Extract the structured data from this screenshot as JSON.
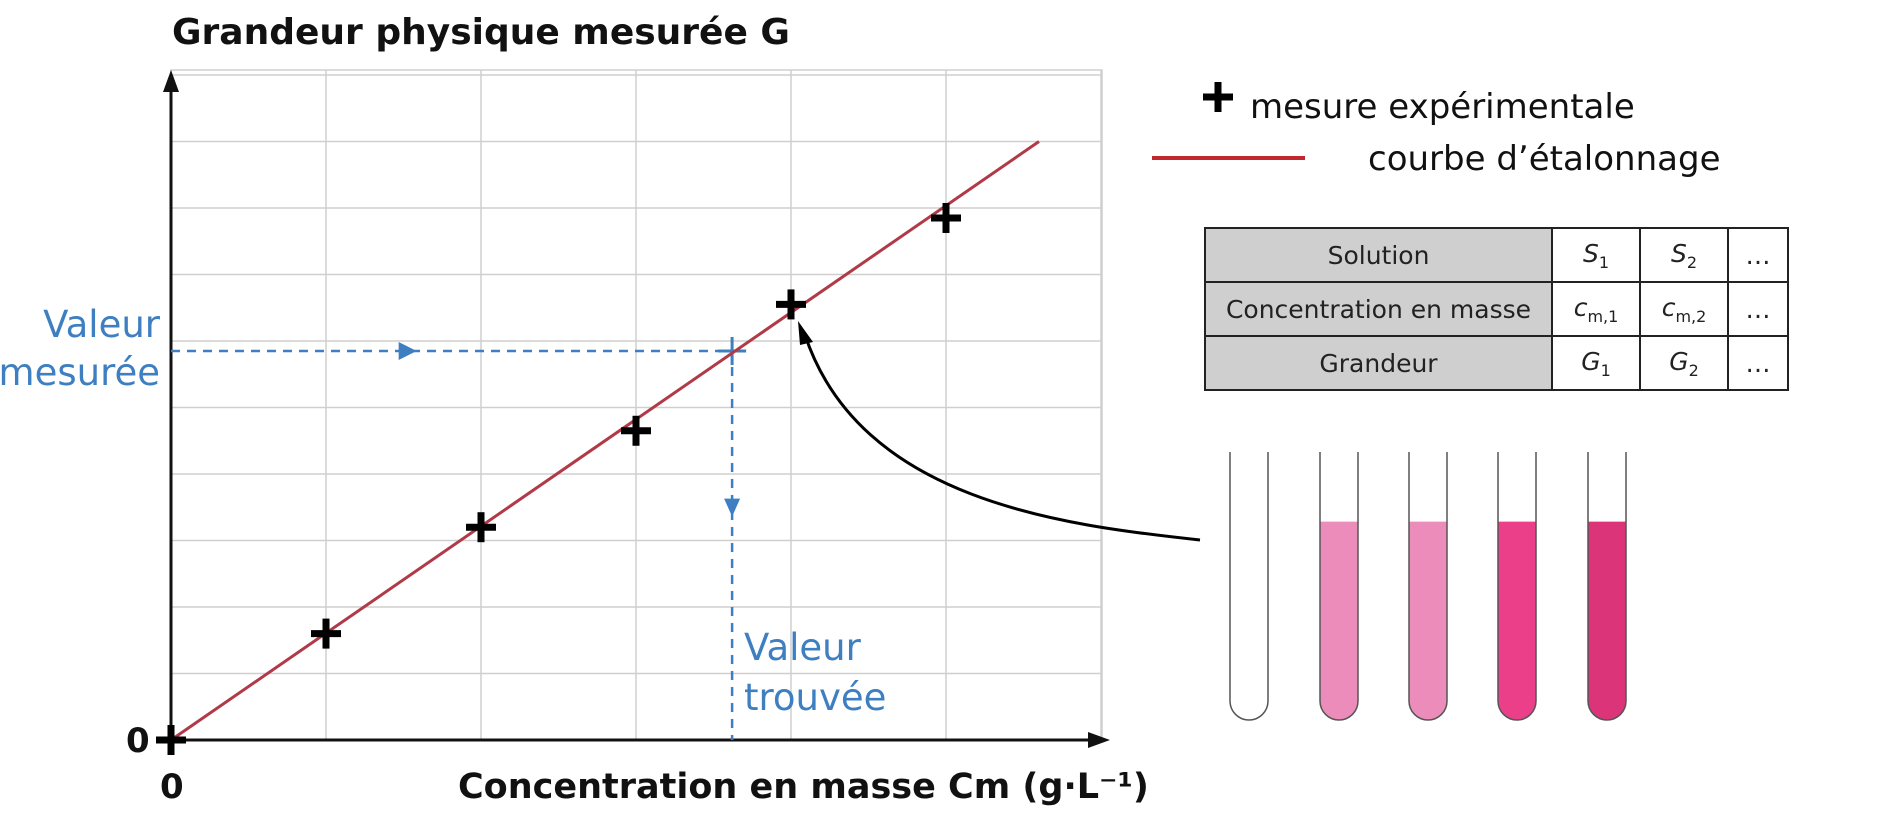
{
  "chart_data": {
    "type": "scatter",
    "title": "Grandeur physique mesurée G",
    "xlabel": "Concentration en masse Cm (g·L⁻¹)",
    "ylabel": "",
    "x_origin_label": "0",
    "y_origin_label": "0",
    "xlim": [
      0,
      6
    ],
    "ylim": [
      0,
      10
    ],
    "grid": true,
    "series": [
      {
        "name": "mesure expérimentale",
        "marker": "+",
        "color": "#000000",
        "points": [
          [
            0,
            0
          ],
          [
            1,
            1.6
          ],
          [
            2,
            3.2
          ],
          [
            3,
            4.65
          ],
          [
            4,
            6.55
          ],
          [
            5,
            7.85
          ]
        ]
      },
      {
        "name": "courbe d'étalonnage",
        "line": true,
        "color": "#b03a48",
        "points": [
          [
            0,
            0
          ],
          [
            5.6,
            9.0
          ]
        ]
      }
    ],
    "lookup": {
      "x": 3.62,
      "y": 5.85,
      "color": "#3e7fc1",
      "y_label_line1": "Valeur",
      "y_label_line2": "mesurée",
      "x_label_line1": "Valeur",
      "x_label_line2": "trouvée"
    },
    "legend": {
      "position": "top-right",
      "marker_text": "mesure expérimentale",
      "line_text": "courbe d’étalonnage"
    }
  },
  "table": {
    "rows": [
      {
        "header": "Solution",
        "cells": [
          {
            "sym": "S",
            "sub": "1"
          },
          {
            "sym": "S",
            "sub": "2"
          }
        ],
        "more": "…"
      },
      {
        "header": "Concentration en masse",
        "cells": [
          {
            "sym": "c",
            "sub": "m,1"
          },
          {
            "sym": "c",
            "sub": "m,2"
          }
        ],
        "more": "…"
      },
      {
        "header": "Grandeur",
        "cells": [
          {
            "sym": "G",
            "sub": "1"
          },
          {
            "sym": "G",
            "sub": "2"
          }
        ],
        "more": "…"
      }
    ]
  },
  "tubes": [
    {
      "fill_fraction": 0,
      "color": "#ffffff"
    },
    {
      "fill_fraction": 0.74,
      "color": "#ec8cba"
    },
    {
      "fill_fraction": 0.74,
      "color": "#ec8cba"
    },
    {
      "fill_fraction": 0.74,
      "color": "#ec3f8a"
    },
    {
      "fill_fraction": 0.74,
      "color": "#dc3478"
    }
  ]
}
